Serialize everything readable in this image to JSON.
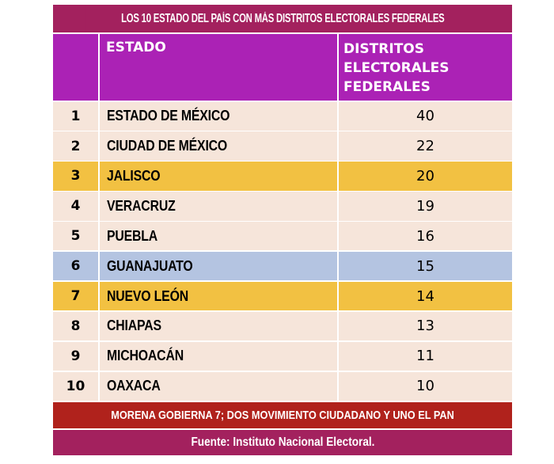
{
  "title": "LOS 10 ESTADO DEL PAÍS CON MÁS DISTRITOS ELECTORALES FEDERALES",
  "headers": {
    "rank": "",
    "estado": "ESTADO",
    "distritos": [
      "DISTRITOS",
      "ELECTORALES",
      "FEDERALES"
    ]
  },
  "rows": [
    {
      "rank": "1",
      "estado": "ESTADO DE MÉXICO",
      "distritos": "40",
      "highlight": "none"
    },
    {
      "rank": "2",
      "estado": "CIUDAD DE MÉXICO",
      "distritos": "22",
      "highlight": "none"
    },
    {
      "rank": "3",
      "estado": "JALISCO",
      "distritos": "20",
      "highlight": "yellow"
    },
    {
      "rank": "4",
      "estado": "VERACRUZ",
      "distritos": "19",
      "highlight": "none"
    },
    {
      "rank": "5",
      "estado": "PUEBLA",
      "distritos": "16",
      "highlight": "none"
    },
    {
      "rank": "6",
      "estado": "GUANAJUATO",
      "distritos": "15",
      "highlight": "blue"
    },
    {
      "rank": "7",
      "estado": "NUEVO LEÓN",
      "distritos": "14",
      "highlight": "yellow"
    },
    {
      "rank": "8",
      "estado": "CHIAPAS",
      "distritos": "13",
      "highlight": "none"
    },
    {
      "rank": "9",
      "estado": "MICHOACÁN",
      "distritos": "11",
      "highlight": "none"
    },
    {
      "rank": "10",
      "estado": "OAXACA",
      "distritos": "10",
      "highlight": "none"
    }
  ],
  "note": "MORENA GOBIERNA 7; DOS MOVIMIENTO CIUDADANO Y UNO EL PAN",
  "source": "Fuente: Instituto Nacional Electoral.",
  "colors": {
    "title_bg": "#a3215e",
    "header_bg": "#ab22b5",
    "row_bg": "#f6e5da",
    "yellow": "#f2c142",
    "blue": "#b4c4e1",
    "note_bg": "#b0221c"
  }
}
